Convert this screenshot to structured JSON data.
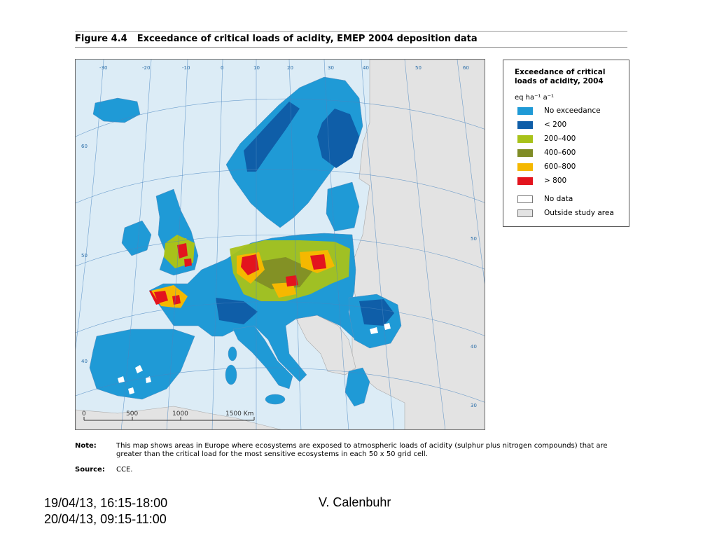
{
  "figure": {
    "number": "Figure 4.4",
    "title": "Exceedance of critical loads of acidity, EMEP 2004 deposition data"
  },
  "map": {
    "meridian_labels": [
      "-30",
      "-20",
      "-10",
      "0",
      "10",
      "20",
      "30",
      "40",
      "50",
      "60"
    ],
    "parallel_labels": [
      "60",
      "50",
      "40",
      "50",
      "40",
      "30"
    ],
    "scale_bar": {
      "ticks": [
        "0",
        "500",
        "1000",
        "1500 Km"
      ]
    }
  },
  "legend": {
    "title": "Exceedance of critical loads of acidity, 2004",
    "unit": "eq ha⁻¹ a⁻¹",
    "items": [
      {
        "label": "No exceedance",
        "color": "#1f9ad6"
      },
      {
        "label": "< 200",
        "color": "#0f5ea8"
      },
      {
        "label": "200–400",
        "color": "#a8c21a"
      },
      {
        "label": "400–600",
        "color": "#7f8c26"
      },
      {
        "label": "600–800",
        "color": "#f5b800"
      },
      {
        "label": "> 800",
        "color": "#e3141e"
      },
      {
        "label": "No data",
        "color": "#ffffff"
      },
      {
        "label": "Outside study area",
        "color": "#e3e3e3"
      }
    ]
  },
  "note": {
    "label": "Note:",
    "text": "This map shows areas in Europe where ecosystems are exposed to atmospheric loads of acidity (sulphur plus nitrogen compounds) that are greater than the critical load for the most sensitive ecosystems in each 50 x 50 grid cell."
  },
  "source": {
    "label": "Source:",
    "text": "CCE."
  },
  "slide_footer": {
    "date_line_1": "19/04/13, 16:15-18:00",
    "date_line_2": "20/04/13, 09:15-11:00",
    "author": "V. Calenbuhr"
  },
  "colors": {
    "sea": "#dcecf6",
    "outside_land": "#e3e3e3",
    "graticule": "#4a86c0"
  }
}
